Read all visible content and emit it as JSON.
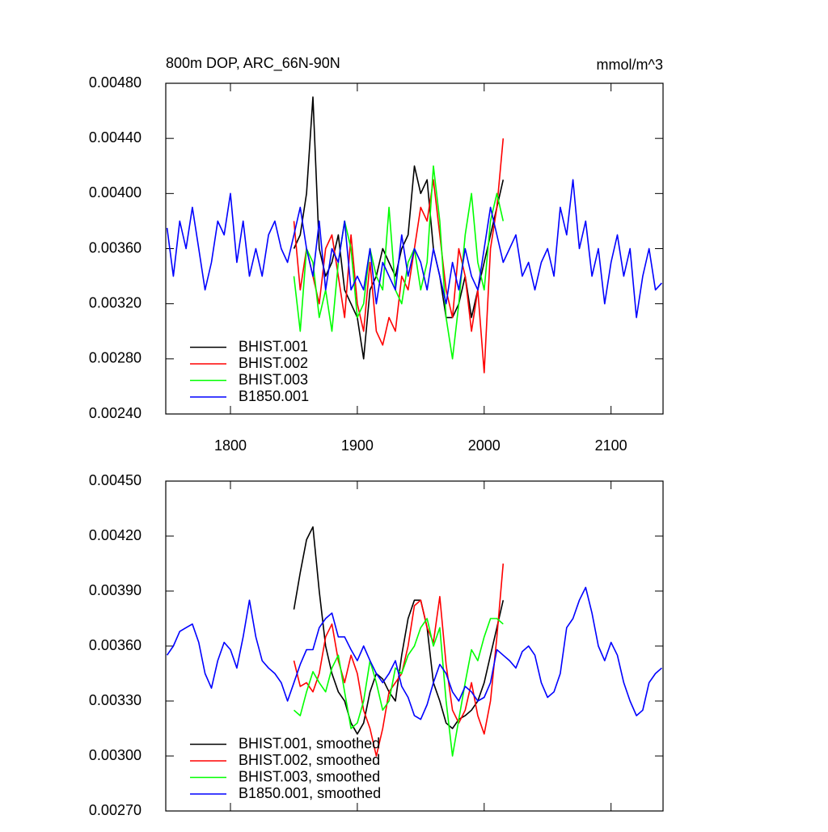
{
  "chart_data": [
    {
      "type": "line",
      "title": "800m DOP, ARC_66N-90N",
      "units": "mmol/m^3",
      "xlim": [
        1749,
        2141
      ],
      "xticks": [
        1800,
        1900,
        2000,
        2100
      ],
      "xtick_labels": true,
      "ylim": [
        0.0024,
        0.0048
      ],
      "yticks": [
        {
          "value": 0.0024,
          "label": "0.00240"
        },
        {
          "value": 0.0028,
          "label": "0.00280"
        },
        {
          "value": 0.0032,
          "label": "0.00320"
        },
        {
          "value": 0.0036,
          "label": "0.00360"
        },
        {
          "value": 0.004,
          "label": "0.00400"
        },
        {
          "value": 0.0044,
          "label": "0.00440"
        },
        {
          "value": 0.0048,
          "label": "0.00480"
        }
      ],
      "legend": "lower left",
      "series": [
        {
          "name": "BHIST.001",
          "color": "#000000",
          "x": [
            1850,
            1855,
            1860,
            1865,
            1870,
            1875,
            1880,
            1885,
            1890,
            1895,
            1900,
            1905,
            1910,
            1915,
            1920,
            1925,
            1930,
            1935,
            1940,
            1945,
            1950,
            1955,
            1960,
            1965,
            1970,
            1975,
            1980,
            1985,
            1990,
            1995,
            2000,
            2005,
            2010,
            2015
          ],
          "values": [
            0.0036,
            0.0037,
            0.004,
            0.0047,
            0.0036,
            0.0034,
            0.0035,
            0.0037,
            0.0033,
            0.0032,
            0.0031,
            0.0028,
            0.0033,
            0.0034,
            0.0036,
            0.0035,
            0.0034,
            0.0036,
            0.0037,
            0.0042,
            0.004,
            0.0041,
            0.0036,
            0.0034,
            0.0031,
            0.0031,
            0.0032,
            0.0034,
            0.0031,
            0.0033,
            0.0035,
            0.0037,
            0.0039,
            0.0041
          ]
        },
        {
          "name": "BHIST.002",
          "color": "#ff0000",
          "x": [
            1850,
            1855,
            1860,
            1865,
            1870,
            1875,
            1880,
            1885,
            1890,
            1895,
            1900,
            1905,
            1910,
            1915,
            1920,
            1925,
            1930,
            1935,
            1940,
            1945,
            1950,
            1955,
            1960,
            1965,
            1970,
            1975,
            1980,
            1985,
            1990,
            1995,
            2000,
            2005,
            2010,
            2015
          ],
          "values": [
            0.0038,
            0.0033,
            0.0036,
            0.0034,
            0.0032,
            0.0036,
            0.0037,
            0.0034,
            0.0031,
            0.0037,
            0.0032,
            0.003,
            0.0035,
            0.003,
            0.0029,
            0.0031,
            0.003,
            0.0034,
            0.0033,
            0.0036,
            0.0039,
            0.0038,
            0.0041,
            0.0037,
            0.0033,
            0.0031,
            0.0036,
            0.0034,
            0.003,
            0.0033,
            0.0027,
            0.0036,
            0.0039,
            0.0044
          ]
        },
        {
          "name": "BHIST.003",
          "color": "#00ff00",
          "x": [
            1850,
            1855,
            1860,
            1865,
            1870,
            1875,
            1880,
            1885,
            1890,
            1895,
            1900,
            1905,
            1910,
            1915,
            1920,
            1925,
            1930,
            1935,
            1940,
            1945,
            1950,
            1955,
            1960,
            1965,
            1970,
            1975,
            1980,
            1985,
            1990,
            1995,
            2000,
            2005,
            2010,
            2015
          ],
          "values": [
            0.0034,
            0.003,
            0.0036,
            0.0035,
            0.0031,
            0.0033,
            0.003,
            0.0035,
            0.0038,
            0.0036,
            0.0031,
            0.0032,
            0.0036,
            0.0034,
            0.0033,
            0.0039,
            0.0033,
            0.0032,
            0.0035,
            0.0036,
            0.0033,
            0.0035,
            0.0042,
            0.0038,
            0.0031,
            0.0028,
            0.0032,
            0.0037,
            0.004,
            0.0035,
            0.0033,
            0.0038,
            0.004,
            0.0038
          ]
        },
        {
          "name": "B1850.001",
          "color": "#0000ff",
          "x": [
            1750,
            1755,
            1760,
            1765,
            1770,
            1775,
            1780,
            1785,
            1790,
            1795,
            1800,
            1805,
            1810,
            1815,
            1820,
            1825,
            1830,
            1835,
            1840,
            1845,
            1850,
            1855,
            1860,
            1865,
            1870,
            1875,
            1880,
            1885,
            1890,
            1895,
            1900,
            1905,
            1910,
            1915,
            1920,
            1925,
            1930,
            1935,
            1940,
            1945,
            1950,
            1955,
            1960,
            1965,
            1970,
            1975,
            1980,
            1985,
            1990,
            1995,
            2000,
            2005,
            2010,
            2015,
            2020,
            2025,
            2030,
            2035,
            2040,
            2045,
            2050,
            2055,
            2060,
            2065,
            2070,
            2075,
            2080,
            2085,
            2090,
            2095,
            2100,
            2105,
            2110,
            2115,
            2120,
            2125,
            2130,
            2135,
            2140
          ],
          "values": [
            0.00375,
            0.0034,
            0.0038,
            0.0036,
            0.0039,
            0.0036,
            0.0033,
            0.0035,
            0.0038,
            0.0037,
            0.004,
            0.0035,
            0.0038,
            0.0034,
            0.0036,
            0.0034,
            0.0037,
            0.0038,
            0.0036,
            0.0035,
            0.0037,
            0.0039,
            0.0036,
            0.0034,
            0.0038,
            0.0033,
            0.0036,
            0.0035,
            0.0038,
            0.0033,
            0.0034,
            0.0033,
            0.0036,
            0.0032,
            0.0035,
            0.0034,
            0.0033,
            0.0037,
            0.0034,
            0.0036,
            0.0035,
            0.0033,
            0.0036,
            0.0034,
            0.0032,
            0.0035,
            0.0033,
            0.0036,
            0.0034,
            0.0033,
            0.0036,
            0.0039,
            0.0037,
            0.0035,
            0.0036,
            0.0037,
            0.0034,
            0.0035,
            0.0033,
            0.0035,
            0.0036,
            0.0034,
            0.0039,
            0.0037,
            0.0041,
            0.0036,
            0.0038,
            0.0034,
            0.0036,
            0.0032,
            0.0035,
            0.0037,
            0.0034,
            0.0036,
            0.0031,
            0.0034,
            0.0036,
            0.0033,
            0.00335
          ]
        }
      ]
    },
    {
      "type": "line",
      "xlim": [
        1749,
        2141
      ],
      "xticks": [
        1800,
        1900,
        2000,
        2100
      ],
      "xtick_labels": false,
      "ylim": [
        0.0027,
        0.0045
      ],
      "yticks": [
        {
          "value": 0.0027,
          "label": "0.00270"
        },
        {
          "value": 0.003,
          "label": "0.00300"
        },
        {
          "value": 0.0033,
          "label": "0.00330"
        },
        {
          "value": 0.0036,
          "label": "0.00360"
        },
        {
          "value": 0.0039,
          "label": "0.00390"
        },
        {
          "value": 0.0042,
          "label": "0.00420"
        },
        {
          "value": 0.0045,
          "label": "0.00450"
        }
      ],
      "legend": "lower left",
      "series": [
        {
          "name": "BHIST.001, smoothed",
          "color": "#000000",
          "x": [
            1850,
            1855,
            1860,
            1865,
            1870,
            1875,
            1880,
            1885,
            1890,
            1895,
            1900,
            1905,
            1910,
            1915,
            1920,
            1925,
            1930,
            1935,
            1940,
            1945,
            1950,
            1955,
            1960,
            1965,
            1970,
            1975,
            1980,
            1985,
            1990,
            1995,
            2000,
            2005,
            2010,
            2015
          ],
          "values": [
            0.0038,
            0.004,
            0.00418,
            0.00425,
            0.0039,
            0.0036,
            0.00345,
            0.00335,
            0.0033,
            0.00318,
            0.00312,
            0.00318,
            0.00335,
            0.00345,
            0.00342,
            0.00335,
            0.0033,
            0.00355,
            0.00375,
            0.00385,
            0.00385,
            0.0037,
            0.0034,
            0.0033,
            0.00318,
            0.00315,
            0.0032,
            0.00322,
            0.00325,
            0.0033,
            0.0034,
            0.00355,
            0.0037,
            0.00385
          ]
        },
        {
          "name": "BHIST.002, smoothed",
          "color": "#ff0000",
          "x": [
            1850,
            1855,
            1860,
            1865,
            1870,
            1875,
            1880,
            1885,
            1890,
            1895,
            1900,
            1905,
            1910,
            1915,
            1920,
            1925,
            1930,
            1935,
            1940,
            1945,
            1950,
            1955,
            1960,
            1965,
            1970,
            1975,
            1980,
            1985,
            1990,
            1995,
            2000,
            2005,
            2010,
            2015
          ],
          "values": [
            0.00352,
            0.00338,
            0.0034,
            0.00335,
            0.00345,
            0.00365,
            0.00372,
            0.00352,
            0.0034,
            0.00355,
            0.00345,
            0.00325,
            0.00315,
            0.003,
            0.00315,
            0.00335,
            0.0034,
            0.00345,
            0.0036,
            0.00382,
            0.00385,
            0.0037,
            0.00362,
            0.00387,
            0.0035,
            0.00325,
            0.00318,
            0.00325,
            0.0034,
            0.00322,
            0.00312,
            0.0033,
            0.00365,
            0.00405
          ]
        },
        {
          "name": "BHIST.003, smoothed",
          "color": "#00ff00",
          "x": [
            1850,
            1855,
            1860,
            1865,
            1870,
            1875,
            1880,
            1885,
            1890,
            1895,
            1900,
            1905,
            1910,
            1915,
            1920,
            1925,
            1930,
            1935,
            1940,
            1945,
            1950,
            1955,
            1960,
            1965,
            1970,
            1975,
            1980,
            1985,
            1990,
            1995,
            2000,
            2005,
            2010,
            2015
          ],
          "values": [
            0.00325,
            0.00322,
            0.00335,
            0.00346,
            0.0034,
            0.00335,
            0.00348,
            0.00355,
            0.00335,
            0.00315,
            0.00318,
            0.0033,
            0.00352,
            0.0034,
            0.00325,
            0.0033,
            0.00348,
            0.00345,
            0.00355,
            0.0036,
            0.0037,
            0.00375,
            0.0036,
            0.0037,
            0.0033,
            0.003,
            0.0032,
            0.0034,
            0.00358,
            0.00352,
            0.00365,
            0.00375,
            0.00375,
            0.00372
          ]
        },
        {
          "name": "B1850.001, smoothed",
          "color": "#0000ff",
          "x": [
            1750,
            1755,
            1760,
            1765,
            1770,
            1775,
            1780,
            1785,
            1790,
            1795,
            1800,
            1805,
            1810,
            1815,
            1820,
            1825,
            1830,
            1835,
            1840,
            1845,
            1850,
            1855,
            1860,
            1865,
            1870,
            1875,
            1880,
            1885,
            1890,
            1895,
            1900,
            1905,
            1910,
            1915,
            1920,
            1925,
            1930,
            1935,
            1940,
            1945,
            1950,
            1955,
            1960,
            1965,
            1970,
            1975,
            1980,
            1985,
            1990,
            1995,
            2000,
            2005,
            2010,
            2015,
            2020,
            2025,
            2030,
            2035,
            2040,
            2045,
            2050,
            2055,
            2060,
            2065,
            2070,
            2075,
            2080,
            2085,
            2090,
            2095,
            2100,
            2105,
            2110,
            2115,
            2120,
            2125,
            2130,
            2135,
            2140
          ],
          "values": [
            0.00355,
            0.0036,
            0.00368,
            0.0037,
            0.00372,
            0.00362,
            0.00345,
            0.00337,
            0.00352,
            0.00362,
            0.00358,
            0.00348,
            0.00365,
            0.00385,
            0.00365,
            0.00352,
            0.00348,
            0.00345,
            0.0034,
            0.0033,
            0.0034,
            0.0035,
            0.00358,
            0.00358,
            0.0037,
            0.00375,
            0.00378,
            0.00365,
            0.00365,
            0.00358,
            0.00352,
            0.0036,
            0.00352,
            0.00345,
            0.0034,
            0.00345,
            0.00352,
            0.00338,
            0.00332,
            0.00322,
            0.0032,
            0.00328,
            0.0034,
            0.0035,
            0.00345,
            0.00335,
            0.0033,
            0.00338,
            0.00335,
            0.0033,
            0.00332,
            0.0034,
            0.00358,
            0.00355,
            0.00352,
            0.00348,
            0.00357,
            0.0036,
            0.00355,
            0.0034,
            0.00332,
            0.00335,
            0.00345,
            0.0037,
            0.00375,
            0.00385,
            0.00392,
            0.00378,
            0.0036,
            0.00352,
            0.00362,
            0.00355,
            0.0034,
            0.0033,
            0.00322,
            0.00325,
            0.0034,
            0.00345,
            0.00348
          ]
        }
      ]
    }
  ]
}
